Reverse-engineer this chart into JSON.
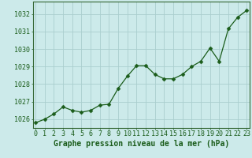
{
  "x": [
    0,
    1,
    2,
    3,
    4,
    5,
    6,
    7,
    8,
    9,
    10,
    11,
    12,
    13,
    14,
    15,
    16,
    17,
    18,
    19,
    20,
    21,
    22,
    23
  ],
  "y": [
    1025.8,
    1026.0,
    1026.3,
    1026.7,
    1026.5,
    1026.4,
    1026.5,
    1026.8,
    1026.85,
    1027.75,
    1028.45,
    1029.05,
    1029.05,
    1028.55,
    1028.3,
    1028.3,
    1028.55,
    1029.0,
    1029.3,
    1030.05,
    1029.3,
    1031.15,
    1031.8,
    1032.2
  ],
  "line_color": "#1a5c1a",
  "marker": "D",
  "marker_size": 2.5,
  "bg_color": "#cceaea",
  "grid_color": "#aacece",
  "border_color": "#336633",
  "xlabel": "Graphe pression niveau de la mer (hPa)",
  "xlabel_color": "#1a5c1a",
  "xlabel_fontsize": 7,
  "xtick_labels": [
    "0",
    "1",
    "2",
    "3",
    "4",
    "5",
    "6",
    "7",
    "8",
    "9",
    "10",
    "11",
    "12",
    "13",
    "14",
    "15",
    "16",
    "17",
    "18",
    "19",
    "20",
    "21",
    "22",
    "23"
  ],
  "ytick_min": 1026,
  "ytick_max": 1032,
  "ylim_min": 1025.5,
  "ylim_max": 1032.7,
  "xlim_min": -0.3,
  "xlim_max": 23.3,
  "tick_fontsize": 6,
  "tick_color": "#1a5c1a",
  "linewidth": 0.9
}
